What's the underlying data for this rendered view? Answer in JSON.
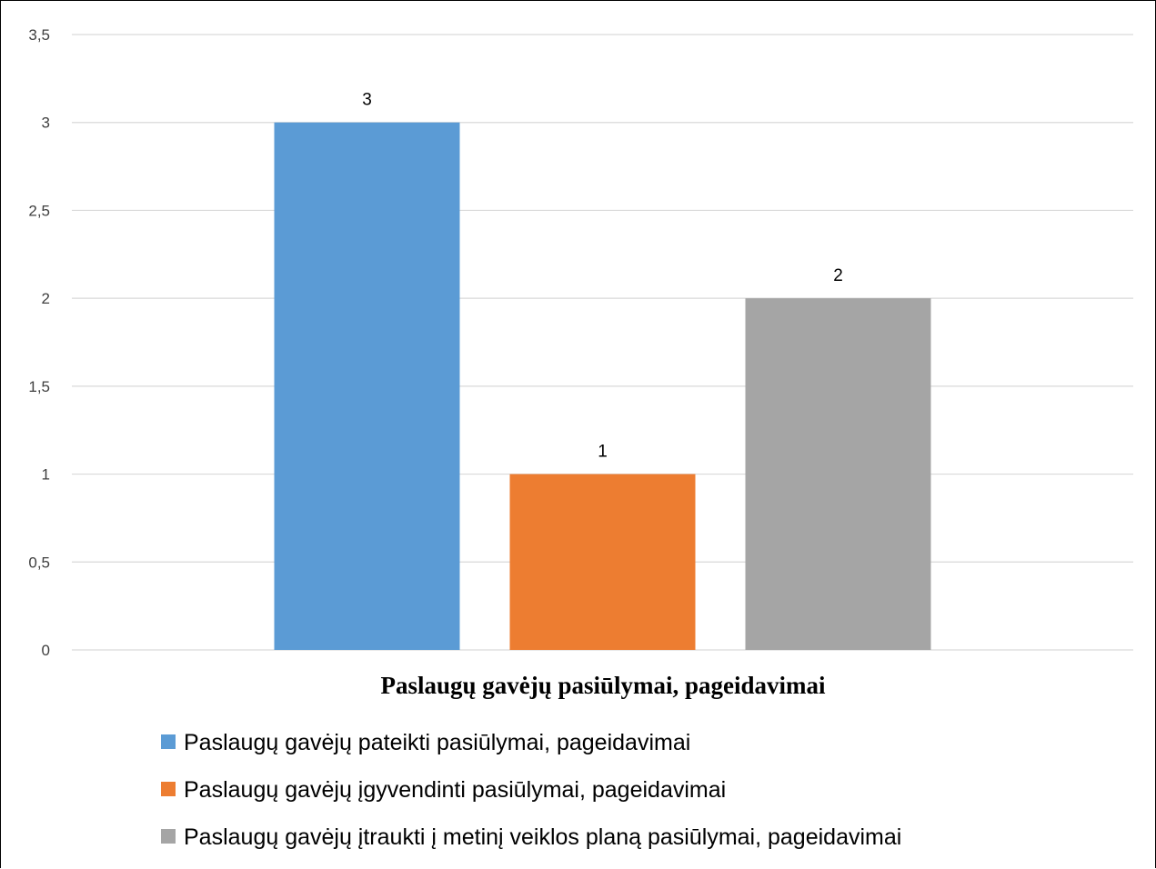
{
  "chart_data": {
    "type": "bar",
    "categories": [
      ""
    ],
    "series": [
      {
        "name": "Paslaugų gavėjų pateikti pasiūlymai, pageidavimai",
        "values": [
          3
        ],
        "color": "#5B9BD5"
      },
      {
        "name": "Paslaugų gavėjų įgyvendinti pasiūlymai, pageidavimai",
        "values": [
          1
        ],
        "color": "#ED7D31"
      },
      {
        "name": "Paslaugų gavėjų įtraukti į metinį veiklos planą pasiūlymai, pageidavimai",
        "values": [
          2
        ],
        "color": "#A5A5A5"
      }
    ],
    "data_labels": [
      "3",
      "1",
      "2"
    ],
    "xlabel": "Paslaugų gavėjų pasiūlymai, pageidavimai",
    "ylabel": "",
    "ylim": [
      0,
      3.5
    ],
    "yticks": [
      0,
      0.5,
      1,
      1.5,
      2,
      2.5,
      3,
      3.5
    ],
    "ytick_labels": [
      "0",
      "0,5",
      "1",
      "1,5",
      "2",
      "2,5",
      "3",
      "3,5"
    ],
    "grid": true,
    "legend_position": "bottom"
  }
}
